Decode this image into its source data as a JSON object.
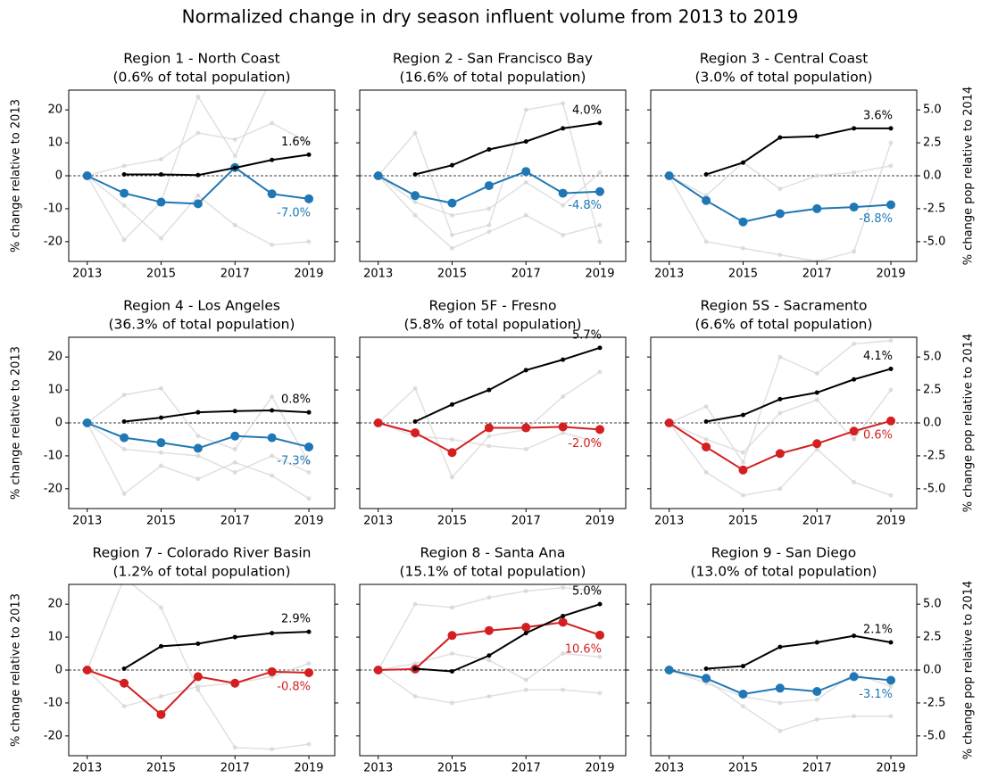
{
  "title": "Normalized change in dry season influent volume from 2013 to 2019",
  "chart_data": [
    {
      "type": "line",
      "title": "Region 1 - North Coast",
      "subtitle": "(0.6% of total population)",
      "x": [
        2013,
        2014,
        2015,
        2016,
        2017,
        2018,
        2019
      ],
      "xlim": [
        2012.5,
        2019.7
      ],
      "xticks": [
        2013,
        2015,
        2017,
        2019
      ],
      "ylim": [
        -26,
        26
      ],
      "yticks": [
        -20,
        -10,
        0,
        10,
        20
      ],
      "y2lim": [
        -6.5,
        6.5
      ],
      "y2ticks": [
        {
          "value": -5,
          "label": "-5.0"
        },
        -2.5,
        {
          "value": 0,
          "label": "0.0"
        },
        2.5,
        {
          "value": 5,
          "label": "5.0"
        }
      ],
      "ylabel": "% change relative to 2013",
      "series": [
        {
          "color": "#d3d3d3",
          "values": [
            0,
            -19.5,
            -8,
            24,
            6,
            30,
            32
          ]
        },
        {
          "color": "#d3d3d3",
          "values": [
            0,
            -9,
            -19,
            -6,
            -15,
            -21,
            -20
          ]
        },
        {
          "color": "#d3d3d3",
          "values": [
            0,
            3,
            5,
            13,
            11,
            16,
            10
          ]
        },
        {
          "color": "#1f77b4",
          "values": [
            0,
            -5.3,
            -8,
            -8.5,
            2.5,
            -5.5,
            -7.0
          ],
          "value_labels": [
            null,
            null,
            null,
            null,
            null,
            null,
            "-7.0%"
          ]
        },
        {
          "color": "#000000",
          "axis": "y2",
          "values": [
            null,
            0.1,
            0.1,
            0.05,
            0.6,
            1.2,
            1.6
          ],
          "value_labels": [
            null,
            null,
            null,
            null,
            null,
            null,
            "1.6%"
          ]
        }
      ]
    },
    {
      "type": "line",
      "title": "Region 2 - San Francisco Bay",
      "subtitle": "(16.6% of total population)",
      "x": [
        2013,
        2014,
        2015,
        2016,
        2017,
        2018,
        2019
      ],
      "xlim": [
        2012.5,
        2019.7
      ],
      "xticks": [
        2013,
        2015,
        2017,
        2019
      ],
      "ylim": [
        -26,
        26
      ],
      "yticks": [
        -20,
        -10,
        0,
        10,
        20
      ],
      "y2lim": [
        -6.5,
        6.5
      ],
      "y2ticks": [
        {
          "value": -5,
          "label": "-5.0"
        },
        -2.5,
        {
          "value": 0,
          "label": "0.0"
        },
        2.5,
        {
          "value": 5,
          "label": "5.0"
        }
      ],
      "series": [
        {
          "color": "#d3d3d3",
          "values": [
            0,
            13,
            -18,
            -15,
            20,
            22,
            -20
          ]
        },
        {
          "color": "#d3d3d3",
          "values": [
            0,
            -12,
            -22,
            -17,
            -12,
            -18,
            -15
          ]
        },
        {
          "color": "#d3d3d3",
          "values": [
            0,
            -8,
            -12,
            -10,
            -2,
            -9,
            1
          ]
        },
        {
          "color": "#1f77b4",
          "values": [
            0,
            -6,
            -8.3,
            -3,
            1.3,
            -5.3,
            -4.8
          ],
          "value_labels": [
            null,
            null,
            null,
            null,
            null,
            null,
            "-4.8%"
          ]
        },
        {
          "color": "#000000",
          "axis": "y2",
          "values": [
            null,
            0.1,
            0.8,
            2.0,
            2.6,
            3.6,
            4.0
          ],
          "value_labels": [
            null,
            null,
            null,
            null,
            null,
            null,
            "4.0%"
          ]
        }
      ]
    },
    {
      "type": "line",
      "title": "Region 3 - Central Coast",
      "subtitle": "(3.0% of total population)",
      "x": [
        2013,
        2014,
        2015,
        2016,
        2017,
        2018,
        2019
      ],
      "xlim": [
        2012.5,
        2019.7
      ],
      "xticks": [
        2013,
        2015,
        2017,
        2019
      ],
      "ylim": [
        -26,
        26
      ],
      "yticks": [
        -20,
        -10,
        0,
        10,
        20
      ],
      "y2lim": [
        -6.5,
        6.5
      ],
      "y2ticks": [
        {
          "value": -5,
          "label": "-5.0"
        },
        -2.5,
        {
          "value": 0,
          "label": "0.0"
        },
        2.5,
        {
          "value": 5,
          "label": "5.0"
        }
      ],
      "y2label": "% change pop relative to 2014",
      "series": [
        {
          "color": "#d3d3d3",
          "values": [
            0,
            -20,
            -22,
            -24,
            -26,
            -23,
            10
          ]
        },
        {
          "color": "#d3d3d3",
          "values": [
            0,
            -6,
            4,
            -4,
            0,
            1,
            3
          ]
        },
        {
          "color": "#1f77b4",
          "values": [
            0,
            -7.5,
            -14,
            -11.5,
            -10,
            -9.5,
            -8.8
          ],
          "value_labels": [
            null,
            null,
            null,
            null,
            null,
            null,
            "-8.8%"
          ]
        },
        {
          "color": "#000000",
          "axis": "y2",
          "values": [
            null,
            0.1,
            1.0,
            2.9,
            3.0,
            3.6,
            3.6
          ],
          "value_labels": [
            null,
            null,
            null,
            null,
            null,
            null,
            "3.6%"
          ]
        }
      ]
    },
    {
      "type": "line",
      "title": "Region 4 - Los Angeles",
      "subtitle": "(36.3% of total population)",
      "x": [
        2013,
        2014,
        2015,
        2016,
        2017,
        2018,
        2019
      ],
      "xlim": [
        2012.5,
        2019.7
      ],
      "xticks": [
        2013,
        2015,
        2017,
        2019
      ],
      "ylim": [
        -26,
        26
      ],
      "yticks": [
        -20,
        -10,
        0,
        10,
        20
      ],
      "y2lim": [
        -6.5,
        6.5
      ],
      "y2ticks": [
        {
          "value": -5,
          "label": "-5.0"
        },
        -2.5,
        {
          "value": 0,
          "label": "0.0"
        },
        2.5,
        {
          "value": 5,
          "label": "5.0"
        }
      ],
      "ylabel": "% change relative to 2013",
      "series": [
        {
          "color": "#d3d3d3",
          "values": [
            0,
            8.5,
            10.5,
            -4,
            -8,
            8,
            -12
          ]
        },
        {
          "color": "#d3d3d3",
          "values": [
            0,
            -21.5,
            -13,
            -17,
            -12,
            -16,
            -23
          ]
        },
        {
          "color": "#d3d3d3",
          "values": [
            0,
            -8,
            -9,
            -10,
            -15,
            -10,
            -15
          ]
        },
        {
          "color": "#1f77b4",
          "values": [
            0,
            -4.5,
            -6,
            -7.7,
            -4,
            -4.5,
            -7.3
          ],
          "value_labels": [
            null,
            null,
            null,
            null,
            null,
            null,
            "-7.3%"
          ]
        },
        {
          "color": "#000000",
          "axis": "y2",
          "values": [
            null,
            0.1,
            0.4,
            0.8,
            0.9,
            0.95,
            0.8
          ],
          "value_labels": [
            null,
            null,
            null,
            null,
            null,
            null,
            "0.8%"
          ]
        }
      ]
    },
    {
      "type": "line",
      "title": "Region 5F - Fresno",
      "subtitle": "(5.8% of total population)",
      "x": [
        2013,
        2014,
        2015,
        2016,
        2017,
        2018,
        2019
      ],
      "xlim": [
        2012.5,
        2019.7
      ],
      "xticks": [
        2013,
        2015,
        2017,
        2019
      ],
      "ylim": [
        -26,
        26
      ],
      "yticks": [
        -20,
        -10,
        0,
        10,
        20
      ],
      "y2lim": [
        -6.5,
        6.5
      ],
      "y2ticks": [
        {
          "value": -5,
          "label": "-5.0"
        },
        -2.5,
        {
          "value": 0,
          "label": "0.0"
        },
        2.5,
        {
          "value": 5,
          "label": "5.0"
        }
      ],
      "series": [
        {
          "color": "#d3d3d3",
          "values": [
            0,
            10.5,
            -16.5,
            -4,
            -2,
            8,
            15.5
          ]
        },
        {
          "color": "#d3d3d3",
          "values": [
            0,
            -4,
            -5,
            -7,
            -8,
            -3,
            -6
          ]
        },
        {
          "color": "#d31f21",
          "values": [
            0,
            -3,
            -9,
            -1.5,
            -1.5,
            -1.2,
            -2.0
          ],
          "value_labels": [
            null,
            null,
            null,
            null,
            null,
            null,
            "-2.0%"
          ]
        },
        {
          "color": "#000000",
          "axis": "y2",
          "values": [
            null,
            0.1,
            1.4,
            2.5,
            4.0,
            4.8,
            5.7
          ],
          "value_labels": [
            null,
            null,
            null,
            null,
            null,
            null,
            "5.7%"
          ]
        }
      ]
    },
    {
      "type": "line",
      "title": "Region 5S - Sacramento",
      "subtitle": "(6.6% of total population)",
      "x": [
        2013,
        2014,
        2015,
        2016,
        2017,
        2018,
        2019
      ],
      "xlim": [
        2012.5,
        2019.7
      ],
      "xticks": [
        2013,
        2015,
        2017,
        2019
      ],
      "ylim": [
        -26,
        26
      ],
      "yticks": [
        -20,
        -10,
        0,
        10,
        20
      ],
      "y2lim": [
        -6.5,
        6.5
      ],
      "y2ticks": [
        {
          "value": -5,
          "label": "-5.0"
        },
        -2.5,
        {
          "value": 0,
          "label": "0.0"
        },
        2.5,
        {
          "value": 5,
          "label": "5.0"
        }
      ],
      "y2label": "% change pop relative to 2014",
      "series": [
        {
          "color": "#d3d3d3",
          "values": [
            0,
            5,
            -12,
            20,
            15,
            24,
            25
          ]
        },
        {
          "color": "#d3d3d3",
          "values": [
            0,
            -15,
            -22,
            -20,
            -8,
            -18,
            -22
          ]
        },
        {
          "color": "#d3d3d3",
          "values": [
            0,
            -5,
            -9,
            3,
            7,
            -5,
            10
          ]
        },
        {
          "color": "#d31f21",
          "values": [
            0,
            -7.3,
            -14.3,
            -9.3,
            -6.3,
            -2.5,
            0.6
          ],
          "value_labels": [
            null,
            null,
            null,
            null,
            null,
            null,
            "0.6%"
          ]
        },
        {
          "color": "#000000",
          "axis": "y2",
          "values": [
            null,
            0.1,
            0.6,
            1.8,
            2.3,
            3.3,
            4.1
          ],
          "value_labels": [
            null,
            null,
            null,
            null,
            null,
            null,
            "4.1%"
          ]
        }
      ]
    },
    {
      "type": "line",
      "title": "Region 7 - Colorado River Basin",
      "subtitle": "(1.2% of total population)",
      "x": [
        2013,
        2014,
        2015,
        2016,
        2017,
        2018,
        2019
      ],
      "xlim": [
        2012.5,
        2019.7
      ],
      "xticks": [
        2013,
        2015,
        2017,
        2019
      ],
      "ylim": [
        -26,
        26
      ],
      "yticks": [
        -20,
        -10,
        0,
        10,
        20
      ],
      "y2lim": [
        -6.5,
        6.5
      ],
      "y2ticks": [
        {
          "value": -5,
          "label": "-5.0"
        },
        -2.5,
        {
          "value": 0,
          "label": "0.0"
        },
        2.5,
        {
          "value": 5,
          "label": "5.0"
        }
      ],
      "ylabel": "% change relative to 2013",
      "series": [
        {
          "color": "#d3d3d3",
          "values": [
            0,
            28,
            19,
            -6,
            -23.5,
            -24,
            -22.5
          ]
        },
        {
          "color": "#d3d3d3",
          "values": [
            0,
            -11,
            -8,
            -5,
            -4,
            -2,
            2
          ]
        },
        {
          "color": "#d31f21",
          "values": [
            0,
            -4,
            -13.5,
            -2,
            -4,
            -0.5,
            -0.8
          ],
          "value_labels": [
            null,
            null,
            null,
            null,
            null,
            null,
            "-0.8%"
          ]
        },
        {
          "color": "#000000",
          "axis": "y2",
          "values": [
            null,
            0.1,
            1.8,
            2.0,
            2.5,
            2.8,
            2.9
          ],
          "value_labels": [
            null,
            null,
            null,
            null,
            null,
            null,
            "2.9%"
          ]
        }
      ]
    },
    {
      "type": "line",
      "title": "Region 8 - Santa Ana",
      "subtitle": "(15.1% of total population)",
      "x": [
        2013,
        2014,
        2015,
        2016,
        2017,
        2018,
        2019
      ],
      "xlim": [
        2012.5,
        2019.7
      ],
      "xticks": [
        2013,
        2015,
        2017,
        2019
      ],
      "ylim": [
        -26,
        26
      ],
      "yticks": [
        -20,
        -10,
        0,
        10,
        20
      ],
      "y2lim": [
        -6.5,
        6.5
      ],
      "y2ticks": [
        {
          "value": -5,
          "label": "-5.0"
        },
        -2.5,
        {
          "value": 0,
          "label": "0.0"
        },
        2.5,
        {
          "value": 5,
          "label": "5.0"
        }
      ],
      "series": [
        {
          "color": "#d3d3d3",
          "values": [
            0,
            20,
            19,
            22,
            24,
            25,
            24
          ]
        },
        {
          "color": "#d3d3d3",
          "values": [
            0,
            -8,
            -10,
            -8,
            -6,
            -6,
            -7
          ]
        },
        {
          "color": "#d3d3d3",
          "values": [
            0,
            2,
            5,
            3,
            -3,
            5,
            4
          ]
        },
        {
          "color": "#d31f21",
          "values": [
            0,
            0.3,
            10.5,
            12,
            13,
            14.5,
            10.6
          ],
          "value_labels": [
            null,
            null,
            null,
            null,
            null,
            null,
            "10.6%"
          ]
        },
        {
          "color": "#000000",
          "axis": "y2",
          "values": [
            null,
            0.1,
            -0.1,
            1.1,
            2.8,
            4.1,
            5.0
          ],
          "value_labels": [
            null,
            null,
            null,
            null,
            null,
            null,
            "5.0%"
          ]
        }
      ]
    },
    {
      "type": "line",
      "title": "Region 9 - San Diego",
      "subtitle": "(13.0% of total population)",
      "x": [
        2013,
        2014,
        2015,
        2016,
        2017,
        2018,
        2019
      ],
      "xlim": [
        2012.5,
        2019.7
      ],
      "xticks": [
        2013,
        2015,
        2017,
        2019
      ],
      "ylim": [
        -26,
        26
      ],
      "yticks": [
        -20,
        -10,
        0,
        10,
        20
      ],
      "y2lim": [
        -6.5,
        6.5
      ],
      "y2ticks": [
        {
          "value": -5,
          "label": "-5.0"
        },
        -2.5,
        {
          "value": 0,
          "label": "0.0"
        },
        2.5,
        {
          "value": 5,
          "label": "5.0"
        }
      ],
      "y2label": "% change pop relative to 2014",
      "series": [
        {
          "color": "#d3d3d3",
          "values": [
            0,
            -3,
            -11,
            -18.5,
            -15,
            -14,
            -14
          ]
        },
        {
          "color": "#d3d3d3",
          "values": [
            0,
            -4,
            -8,
            -10,
            -9,
            -1,
            -5
          ]
        },
        {
          "color": "#1f77b4",
          "values": [
            0,
            -2.5,
            -7.3,
            -5.5,
            -6.5,
            -2,
            -3.1
          ],
          "value_labels": [
            null,
            null,
            null,
            null,
            null,
            null,
            "-3.1%"
          ]
        },
        {
          "color": "#000000",
          "axis": "y2",
          "values": [
            null,
            0.1,
            0.3,
            1.75,
            2.1,
            2.6,
            2.1
          ],
          "value_labels": [
            null,
            null,
            null,
            null,
            null,
            null,
            "2.1%"
          ]
        }
      ]
    }
  ]
}
